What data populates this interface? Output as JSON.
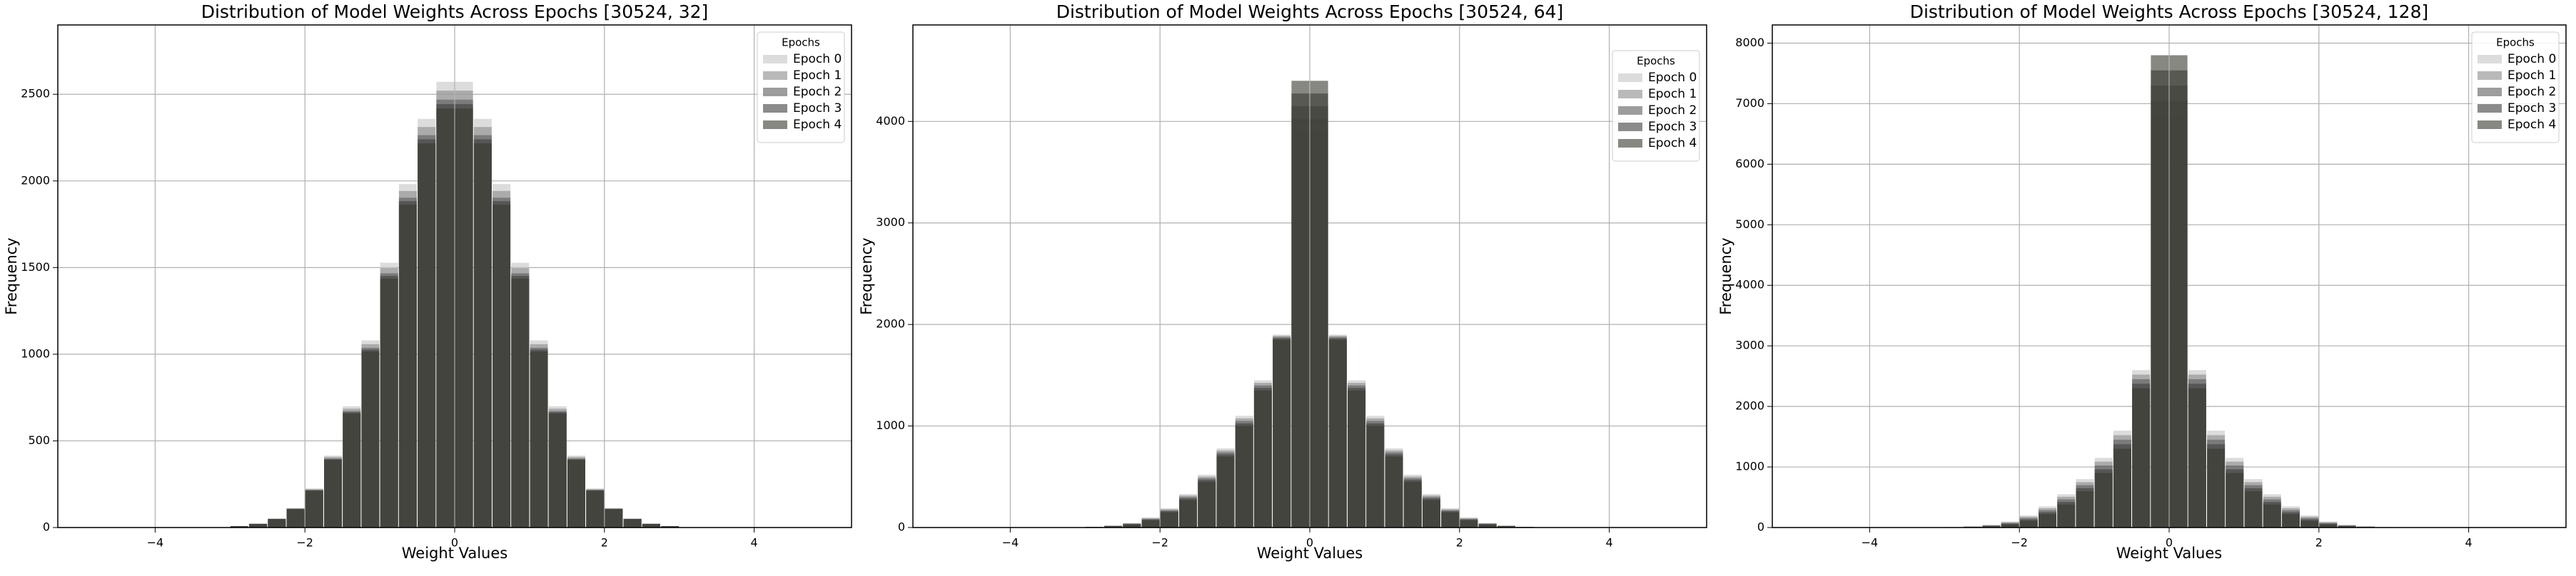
{
  "chart_data": [
    {
      "type": "histogram",
      "title": "Distribution of Model Weights Across Epochs  [30524, 32]",
      "xlabel": "Weight Values",
      "ylabel": "Frequency",
      "legend_title": "Epochs",
      "legend_loc": "upper right",
      "grid": true,
      "opacity": 0.6,
      "xlim": [
        -5.3,
        5.3
      ],
      "xticks": [
        {
          "value": -4,
          "label": "−4"
        },
        {
          "value": -2,
          "label": "−2"
        },
        0,
        2,
        4
      ],
      "ylim": [
        0,
        2900
      ],
      "yticks": [
        0,
        500,
        1000,
        1500,
        2000,
        2500
      ],
      "bins": [
        -3,
        -2.75,
        -2.5,
        -2.25,
        -2,
        -1.75,
        -1.5,
        -1.25,
        -1,
        -0.75,
        -0.5,
        -0.25,
        0,
        0.25,
        0.5,
        0.75,
        1,
        1.25,
        1.5,
        1.75,
        2,
        2.25,
        2.5,
        2.75,
        3
      ],
      "series": [
        {
          "name": "Epoch 0",
          "color": "#c4c4c4",
          "values": [
            8,
            22,
            52,
            113,
            226,
            415,
            700,
            1080,
            1528,
            1982,
            2358,
            2572,
            2572,
            2358,
            1982,
            1528,
            1080,
            700,
            415,
            226,
            113,
            52,
            22,
            8
          ]
        },
        {
          "name": "Epoch 1",
          "color": "#8a8a8a",
          "values": [
            8,
            22,
            51,
            111,
            221,
            407,
            686,
            1058,
            1497,
            1942,
            2311,
            2521,
            2521,
            2311,
            1942,
            1497,
            1058,
            686,
            407,
            221,
            111,
            51,
            22,
            8
          ]
        },
        {
          "name": "Epoch 2",
          "color": "#5c5c5c",
          "values": [
            8,
            21,
            50,
            108,
            217,
            398,
            672,
            1037,
            1467,
            1903,
            2264,
            2469,
            2469,
            2264,
            1903,
            1467,
            1037,
            672,
            398,
            217,
            108,
            50,
            21,
            8
          ]
        },
        {
          "name": "Epoch 3",
          "color": "#3e3e3e",
          "values": [
            8,
            21,
            49,
            107,
            215,
            394,
            665,
            1026,
            1452,
            1883,
            2240,
            2443,
            2443,
            2240,
            1883,
            1452,
            1026,
            665,
            394,
            215,
            107,
            49,
            21,
            8
          ]
        },
        {
          "name": "Epoch 4",
          "color": "#38382e",
          "values": [
            8,
            21,
            49,
            106,
            212,
            390,
            658,
            1015,
            1436,
            1863,
            2217,
            2418,
            2418,
            2217,
            1863,
            1436,
            1015,
            658,
            390,
            212,
            106,
            49,
            21,
            8
          ]
        }
      ]
    },
    {
      "type": "histogram",
      "title": "Distribution of Model Weights Across Epochs  [30524, 64]",
      "xlabel": "Weight Values",
      "ylabel": "Frequency",
      "legend_title": "Epochs",
      "legend_loc": "upper right",
      "grid": true,
      "opacity": 0.6,
      "xlim": [
        -5.3,
        5.3
      ],
      "xticks": [
        {
          "value": -4,
          "label": "−4"
        },
        {
          "value": -2,
          "label": "−2"
        },
        0,
        2,
        4
      ],
      "ylim": [
        0,
        4950
      ],
      "yticks": [
        0,
        1000,
        2000,
        3000,
        4000
      ],
      "bins": [
        -3,
        -2.75,
        -2.5,
        -2.25,
        -2,
        -1.75,
        -1.5,
        -1.25,
        -1,
        -0.75,
        -0.5,
        -0.25,
        0,
        0.25,
        0.5,
        0.75,
        1,
        1.25,
        1.5,
        1.75,
        2,
        2.25,
        2.5,
        2.75,
        3
      ],
      "series": [
        {
          "name": "Epoch 0",
          "color": "#c4c4c4",
          "values": [
            8,
            20,
            45,
            100,
            190,
            330,
            520,
            780,
            1100,
            1450,
            1900,
            3900,
            3900,
            1900,
            1450,
            1100,
            780,
            520,
            330,
            190,
            100,
            45,
            20,
            8
          ]
        },
        {
          "name": "Epoch 1",
          "color": "#8a8a8a",
          "values": [
            7,
            18,
            41,
            92,
            180,
            315,
            502,
            760,
            1075,
            1425,
            1888,
            4025,
            4025,
            1888,
            1425,
            1075,
            760,
            502,
            315,
            180,
            92,
            41,
            18,
            7
          ]
        },
        {
          "name": "Epoch 2",
          "color": "#5c5c5c",
          "values": [
            6,
            16,
            38,
            85,
            170,
            300,
            485,
            740,
            1050,
            1400,
            1875,
            4150,
            4150,
            1875,
            1400,
            1050,
            740,
            485,
            300,
            170,
            85,
            38,
            16,
            6
          ]
        },
        {
          "name": "Epoch 3",
          "color": "#3e3e3e",
          "values": [
            5,
            14,
            34,
            78,
            160,
            285,
            468,
            720,
            1025,
            1375,
            1862,
            4275,
            4275,
            1862,
            1375,
            1025,
            720,
            468,
            285,
            160,
            78,
            34,
            14,
            5
          ]
        },
        {
          "name": "Epoch 4",
          "color": "#38382e",
          "values": [
            4,
            12,
            30,
            70,
            150,
            270,
            450,
            700,
            1000,
            1350,
            1850,
            4400,
            4400,
            1850,
            1350,
            1000,
            700,
            450,
            270,
            150,
            70,
            30,
            12,
            4
          ]
        }
      ]
    },
    {
      "type": "histogram",
      "title": "Distribution of Model Weights Across Epochs  [30524, 128]",
      "xlabel": "Weight Values",
      "ylabel": "Frequency",
      "legend_title": "Epochs",
      "legend_loc": "upper right",
      "grid": true,
      "opacity": 0.6,
      "xlim": [
        -5.3,
        5.3
      ],
      "xticks": [
        {
          "value": -4,
          "label": "−4"
        },
        {
          "value": -2,
          "label": "−2"
        },
        0,
        2,
        4
      ],
      "ylim": [
        0,
        8300
      ],
      "yticks": [
        0,
        1000,
        2000,
        3000,
        4000,
        5000,
        6000,
        7000,
        8000
      ],
      "bins": [
        -3,
        -2.75,
        -2.5,
        -2.25,
        -2,
        -1.75,
        -1.5,
        -1.25,
        -1,
        -0.75,
        -0.5,
        -0.25,
        0,
        0.25,
        0.5,
        0.75,
        1,
        1.25,
        1.5,
        1.75,
        2,
        2.25,
        2.5,
        2.75,
        3
      ],
      "series": [
        {
          "name": "Epoch 0",
          "color": "#c4c4c4",
          "values": [
            8,
            20,
            45,
            100,
            200,
            350,
            550,
            800,
            1150,
            1600,
            2600,
            6800,
            6800,
            2600,
            1600,
            1150,
            800,
            550,
            350,
            200,
            100,
            45,
            20,
            8
          ]
        },
        {
          "name": "Epoch 1",
          "color": "#8a8a8a",
          "values": [
            7,
            17,
            39,
            88,
            178,
            318,
            508,
            750,
            1088,
            1525,
            2525,
            7050,
            7050,
            2525,
            1525,
            1088,
            750,
            508,
            318,
            178,
            88,
            39,
            17,
            7
          ]
        },
        {
          "name": "Epoch 2",
          "color": "#5c5c5c",
          "values": [
            6,
            14,
            33,
            75,
            155,
            285,
            465,
            700,
            1025,
            1450,
            2450,
            7300,
            7300,
            2450,
            1450,
            1025,
            700,
            465,
            285,
            155,
            75,
            33,
            14,
            6
          ]
        },
        {
          "name": "Epoch 3",
          "color": "#3e3e3e",
          "values": [
            4,
            11,
            26,
            62,
            132,
            252,
            422,
            650,
            962,
            1375,
            2375,
            7550,
            7550,
            2375,
            1375,
            962,
            650,
            422,
            252,
            132,
            62,
            26,
            11,
            4
          ]
        },
        {
          "name": "Epoch 4",
          "color": "#38382e",
          "values": [
            3,
            8,
            20,
            50,
            110,
            220,
            380,
            600,
            900,
            1300,
            2300,
            7800,
            7800,
            2300,
            1300,
            900,
            600,
            380,
            220,
            110,
            50,
            20,
            8,
            3
          ]
        }
      ]
    }
  ]
}
